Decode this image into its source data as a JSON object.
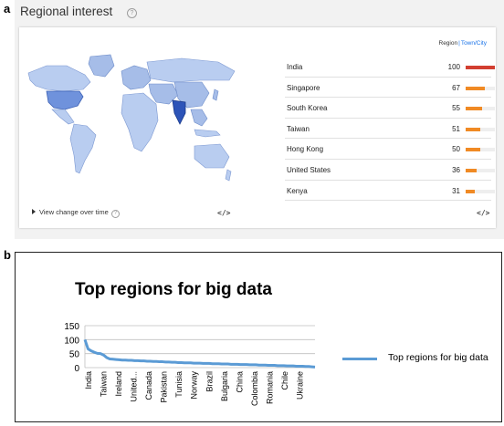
{
  "panel_a": {
    "label": "a",
    "title": "Regional interest",
    "help_glyph": "?",
    "toggle": {
      "active": "Region",
      "separator": "|",
      "alt": "Town/City"
    },
    "bar_colors": {
      "top": "#d23f31",
      "rest": "#f08a24"
    },
    "regions": [
      {
        "name": "India",
        "value": "100"
      },
      {
        "name": "Singapore",
        "value": "67"
      },
      {
        "name": "South Korea",
        "value": "55"
      },
      {
        "name": "Taiwan",
        "value": "51"
      },
      {
        "name": "Hong Kong",
        "value": "50"
      },
      {
        "name": "United States",
        "value": "36"
      },
      {
        "name": "Kenya",
        "value": "31"
      }
    ],
    "view_change_label": "View change over time",
    "embed_glyph": "</>",
    "map_icon": "world-choropleth-map"
  },
  "panel_b": {
    "label": "b"
  },
  "chart_data": {
    "type": "line",
    "title": "Top regions for big data",
    "xlabel": "",
    "ylabel": "",
    "ylim": [
      0,
      150
    ],
    "yticks": [
      "0",
      "50",
      "100",
      "150"
    ],
    "grid": true,
    "legend_position": "right",
    "series_color": "#5b9bd5",
    "tick_labels": [
      "India",
      "Taiwan",
      "Ireland",
      "United...",
      "Canada",
      "Pakistan",
      "Tunisia",
      "Norway",
      "Brazil",
      "Bulgaria",
      "China",
      "Colombia",
      "Romania",
      "Chile",
      "Ukraine"
    ],
    "series": [
      {
        "name": "Top regions for big data",
        "values": [
          100,
          67,
          60,
          55,
          51,
          50,
          45,
          36,
          31,
          30,
          29,
          28,
          27,
          27,
          26,
          26,
          25,
          25,
          24,
          24,
          23,
          23,
          22,
          22,
          21,
          21,
          20,
          20,
          19,
          19,
          18,
          18,
          17,
          17,
          17,
          16,
          16,
          16,
          15,
          15,
          15,
          14,
          14,
          14,
          13,
          13,
          13,
          12,
          12,
          12,
          11,
          11,
          11,
          10,
          10,
          10,
          9,
          9,
          9,
          8,
          8,
          8,
          7,
          7,
          7,
          6,
          6,
          6,
          5,
          5,
          5,
          4,
          4,
          3,
          2
        ]
      }
    ]
  }
}
